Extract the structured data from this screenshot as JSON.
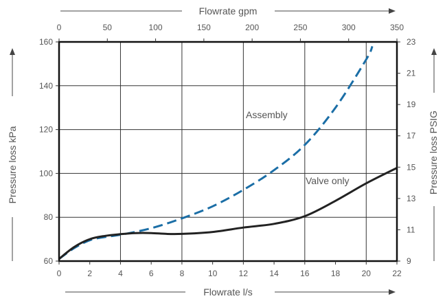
{
  "chart_data": {
    "type": "line",
    "title": "",
    "xlabel": "Flowrate l/s",
    "ylabel": "Pressure loss kPa",
    "x2label": "Flowrate gpm",
    "y2label": "Pressure loss PSIG",
    "xlim": [
      0,
      22
    ],
    "ylim": [
      60,
      160
    ],
    "x2lim": [
      0,
      350
    ],
    "y2lim": [
      9,
      23
    ],
    "x_ticks": [
      0,
      2,
      4,
      6,
      8,
      10,
      12,
      14,
      16,
      18,
      20,
      22
    ],
    "y_ticks": [
      60,
      80,
      100,
      120,
      140,
      160
    ],
    "x2_ticks": [
      0,
      50,
      100,
      150,
      200,
      250,
      300,
      350
    ],
    "y2_ticks": [
      9,
      11,
      13,
      15,
      17,
      19,
      21,
      23
    ],
    "grid": true,
    "legend": "none",
    "series": [
      {
        "name": "Assembly",
        "style": "dashed",
        "color": "#1b6ea6",
        "x": [
          0,
          1,
          2,
          3,
          4,
          6,
          8,
          10,
          12,
          14,
          16,
          18,
          20,
          20.4
        ],
        "y": [
          61,
          66,
          69.5,
          71,
          72,
          75,
          79.5,
          85,
          92.5,
          101.5,
          113,
          130,
          152,
          158
        ]
      },
      {
        "name": "Valve only",
        "style": "solid",
        "color": "#222222",
        "x": [
          0,
          1,
          2,
          3,
          4,
          5,
          6,
          7,
          8,
          10,
          12,
          14,
          16,
          18,
          20,
          22
        ],
        "y": [
          61,
          66.5,
          70,
          71.5,
          72.3,
          72.8,
          72.8,
          72.4,
          72.4,
          73.3,
          75.3,
          77,
          80.5,
          87.5,
          95.5,
          102.5
        ]
      }
    ],
    "annotations": [
      "Assembly",
      "Valve only"
    ]
  }
}
